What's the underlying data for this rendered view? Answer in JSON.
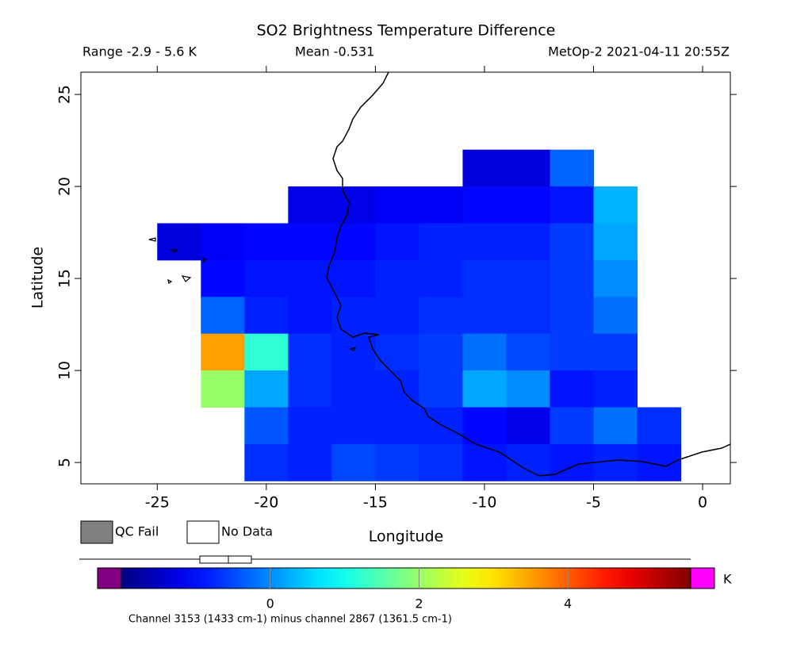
{
  "chart_data": {
    "type": "map-grid",
    "title": "SO2 Brightness Temperature Difference",
    "range_text": "Range -2.9 - 5.6 K",
    "mean_text": "Mean -0.531",
    "source_text": "MetOp-2 2021-04-11 20:55Z",
    "x_label": "Longitude",
    "y_label": "Latitude",
    "xlim": [
      -28.5,
      1.27
    ],
    "ylim": [
      3.84,
      26.21
    ],
    "xticks": [
      -25,
      -20,
      -15,
      -10,
      -5,
      0
    ],
    "yticks": [
      5,
      10,
      15,
      20,
      25
    ],
    "colormap": "jet",
    "clim": [
      -2,
      5.65
    ],
    "cbar_ticks": [
      0,
      2,
      4
    ],
    "cbar_unit": "K",
    "below_color": "#800080",
    "above_color": "#ff00ff",
    "legend": [
      {
        "name": "QC Fail",
        "color": "#808080"
      },
      {
        "name": "No Data",
        "color": "#ffffff"
      }
    ],
    "footnote": "Channel 3153 (1433 cm-1) minus channel 2867 (1361.5 cm-1)",
    "grid": {
      "lon": [
        -24,
        -22,
        -20,
        -18,
        -16,
        -14,
        -12,
        -10,
        -8,
        -6,
        -4,
        -2
      ],
      "lat": [
        21,
        19,
        17,
        15,
        13,
        11,
        9,
        7,
        5
      ],
      "values": [
        [
          null,
          null,
          null,
          null,
          null,
          null,
          null,
          -1.3,
          -1.3,
          -0.3,
          null,
          null
        ],
        [
          null,
          null,
          null,
          -1.2,
          -1.2,
          -1.1,
          -1.1,
          -1.0,
          -1.0,
          -0.9,
          0.3,
          null
        ],
        [
          -1.3,
          -1.1,
          -1.0,
          -1.0,
          -1.0,
          -0.9,
          -0.8,
          -0.8,
          -0.8,
          -0.6,
          0.2,
          null
        ],
        [
          null,
          -1.0,
          -0.9,
          -0.9,
          -0.9,
          -0.8,
          -0.8,
          -0.7,
          -0.7,
          -0.6,
          0.0,
          null
        ],
        [
          null,
          -0.3,
          -0.8,
          -0.9,
          -0.8,
          -0.8,
          -0.7,
          -0.7,
          -0.7,
          -0.6,
          -0.2,
          null
        ],
        [
          null,
          3.5,
          1.2,
          -0.7,
          -0.8,
          -0.7,
          -0.6,
          -0.2,
          -0.5,
          -0.6,
          -0.6,
          null
        ],
        [
          null,
          2.0,
          0.2,
          -0.7,
          -0.8,
          -0.8,
          -0.6,
          0.2,
          0.0,
          -0.9,
          -0.8,
          null
        ],
        [
          null,
          null,
          -0.4,
          -0.8,
          -0.8,
          -0.8,
          -0.8,
          -1.0,
          -1.2,
          -0.6,
          -0.2,
          -0.7
        ],
        [
          null,
          null,
          -0.7,
          -0.8,
          -0.5,
          -0.6,
          -0.7,
          -0.9,
          -0.8,
          -0.9,
          -0.8,
          -0.9
        ]
      ]
    }
  }
}
